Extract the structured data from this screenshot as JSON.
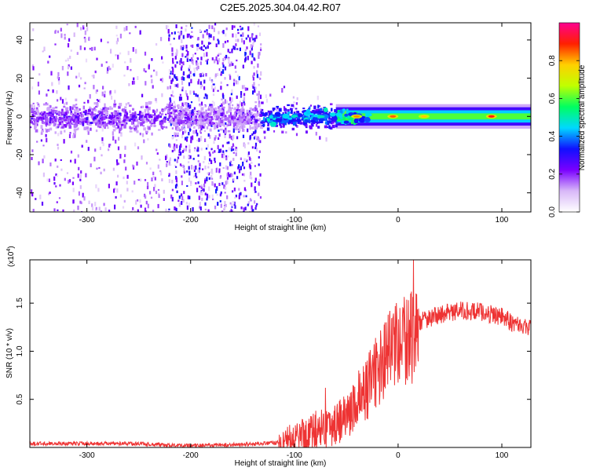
{
  "figure_title": "C2E5.2025.304.04.42.R07",
  "chart_data": [
    {
      "type": "heatmap",
      "title": "C2E5.2025.304.04.42.R07",
      "xlabel": "Height of straight line (km)",
      "ylabel": "Frequency (Hz)",
      "xlim": [
        -355,
        128
      ],
      "ylim": [
        -50,
        49
      ],
      "xticks": [
        -300,
        -200,
        -100,
        0,
        100
      ],
      "yticks": [
        -40,
        -20,
        0,
        20,
        40
      ],
      "xtick_labels": [
        "-300",
        "-200",
        "-100",
        "0",
        "100"
      ],
      "ytick_labels": [
        "-40",
        "-20",
        "0",
        "20",
        "40"
      ],
      "colorbar": {
        "label": "Normalized spectral amplitude",
        "range": [
          0,
          1
        ],
        "ticks": [
          0.0,
          0.2,
          0.4,
          0.6,
          0.8
        ],
        "tick_labels": [
          "0.0",
          "0.2",
          "0.4",
          "0.6",
          "0.8"
        ],
        "colormap": [
          "#ffffff",
          "#d8b8f8",
          "#7a00ff",
          "#1010ff",
          "#00d8ff",
          "#00ff60",
          "#c0ff00",
          "#ffd000",
          "#ff2000",
          "#ff0090"
        ]
      },
      "band_center_hz": 0,
      "regions": [
        {
          "x_range": [
            -355,
            -222
          ],
          "noise_level": "moderate",
          "band_amplitude": 0.22
        },
        {
          "x_range": [
            -222,
            -133
          ],
          "noise_level": "high",
          "band_amplitude": 0.18
        },
        {
          "x_range": [
            -133,
            -60
          ],
          "noise_level": "low",
          "band_amplitude": 0.35
        },
        {
          "x_range": [
            -60,
            128
          ],
          "noise_level": "none",
          "band_amplitude": 0.55
        }
      ],
      "peaks": [
        {
          "x": -40,
          "amplitude": 0.82
        },
        {
          "x": -5,
          "amplitude": 0.85
        },
        {
          "x": 25,
          "amplitude": 0.78
        },
        {
          "x": 90,
          "amplitude": 0.9
        }
      ]
    },
    {
      "type": "line",
      "xlabel": "Height of straight line (km)",
      "ylabel": "SNR (10 * v/v)",
      "scale_note": "(x10",
      "scale_exp": "4",
      "scale_close": ")",
      "xlim": [
        -355,
        128
      ],
      "ylim": [
        0,
        1.95
      ],
      "xticks": [
        -300,
        -200,
        -100,
        0,
        100
      ],
      "yticks": [
        0.5,
        1.0,
        1.5
      ],
      "xtick_labels": [
        "-300",
        "-200",
        "-100",
        "0",
        "100"
      ],
      "ytick_labels": [
        "0.5",
        "1.0",
        "1.5"
      ],
      "series": [
        {
          "name": "SNR",
          "color": "#ee3333",
          "x": [
            -355,
            -300,
            -250,
            -220,
            -200,
            -150,
            -115,
            -100,
            -90,
            -80,
            -70,
            -60,
            -50,
            -40,
            -30,
            -20,
            -10,
            0,
            10,
            20,
            40,
            60,
            80,
            100,
            110,
            128
          ],
          "y": [
            0.04,
            0.04,
            0.04,
            0.02,
            0.02,
            0.03,
            0.05,
            0.12,
            0.18,
            0.22,
            0.25,
            0.3,
            0.38,
            0.5,
            0.68,
            0.88,
            1.05,
            1.15,
            1.22,
            1.32,
            1.4,
            1.44,
            1.43,
            1.38,
            1.32,
            1.25
          ]
        }
      ],
      "spikes": [
        {
          "x": 15,
          "y": 1.95
        },
        {
          "x": 12,
          "y": 1.6
        },
        {
          "x": -8,
          "y": 1.42
        },
        {
          "x": -38,
          "y": 0.8
        },
        {
          "x": -70,
          "y": 0.62
        }
      ]
    }
  ]
}
